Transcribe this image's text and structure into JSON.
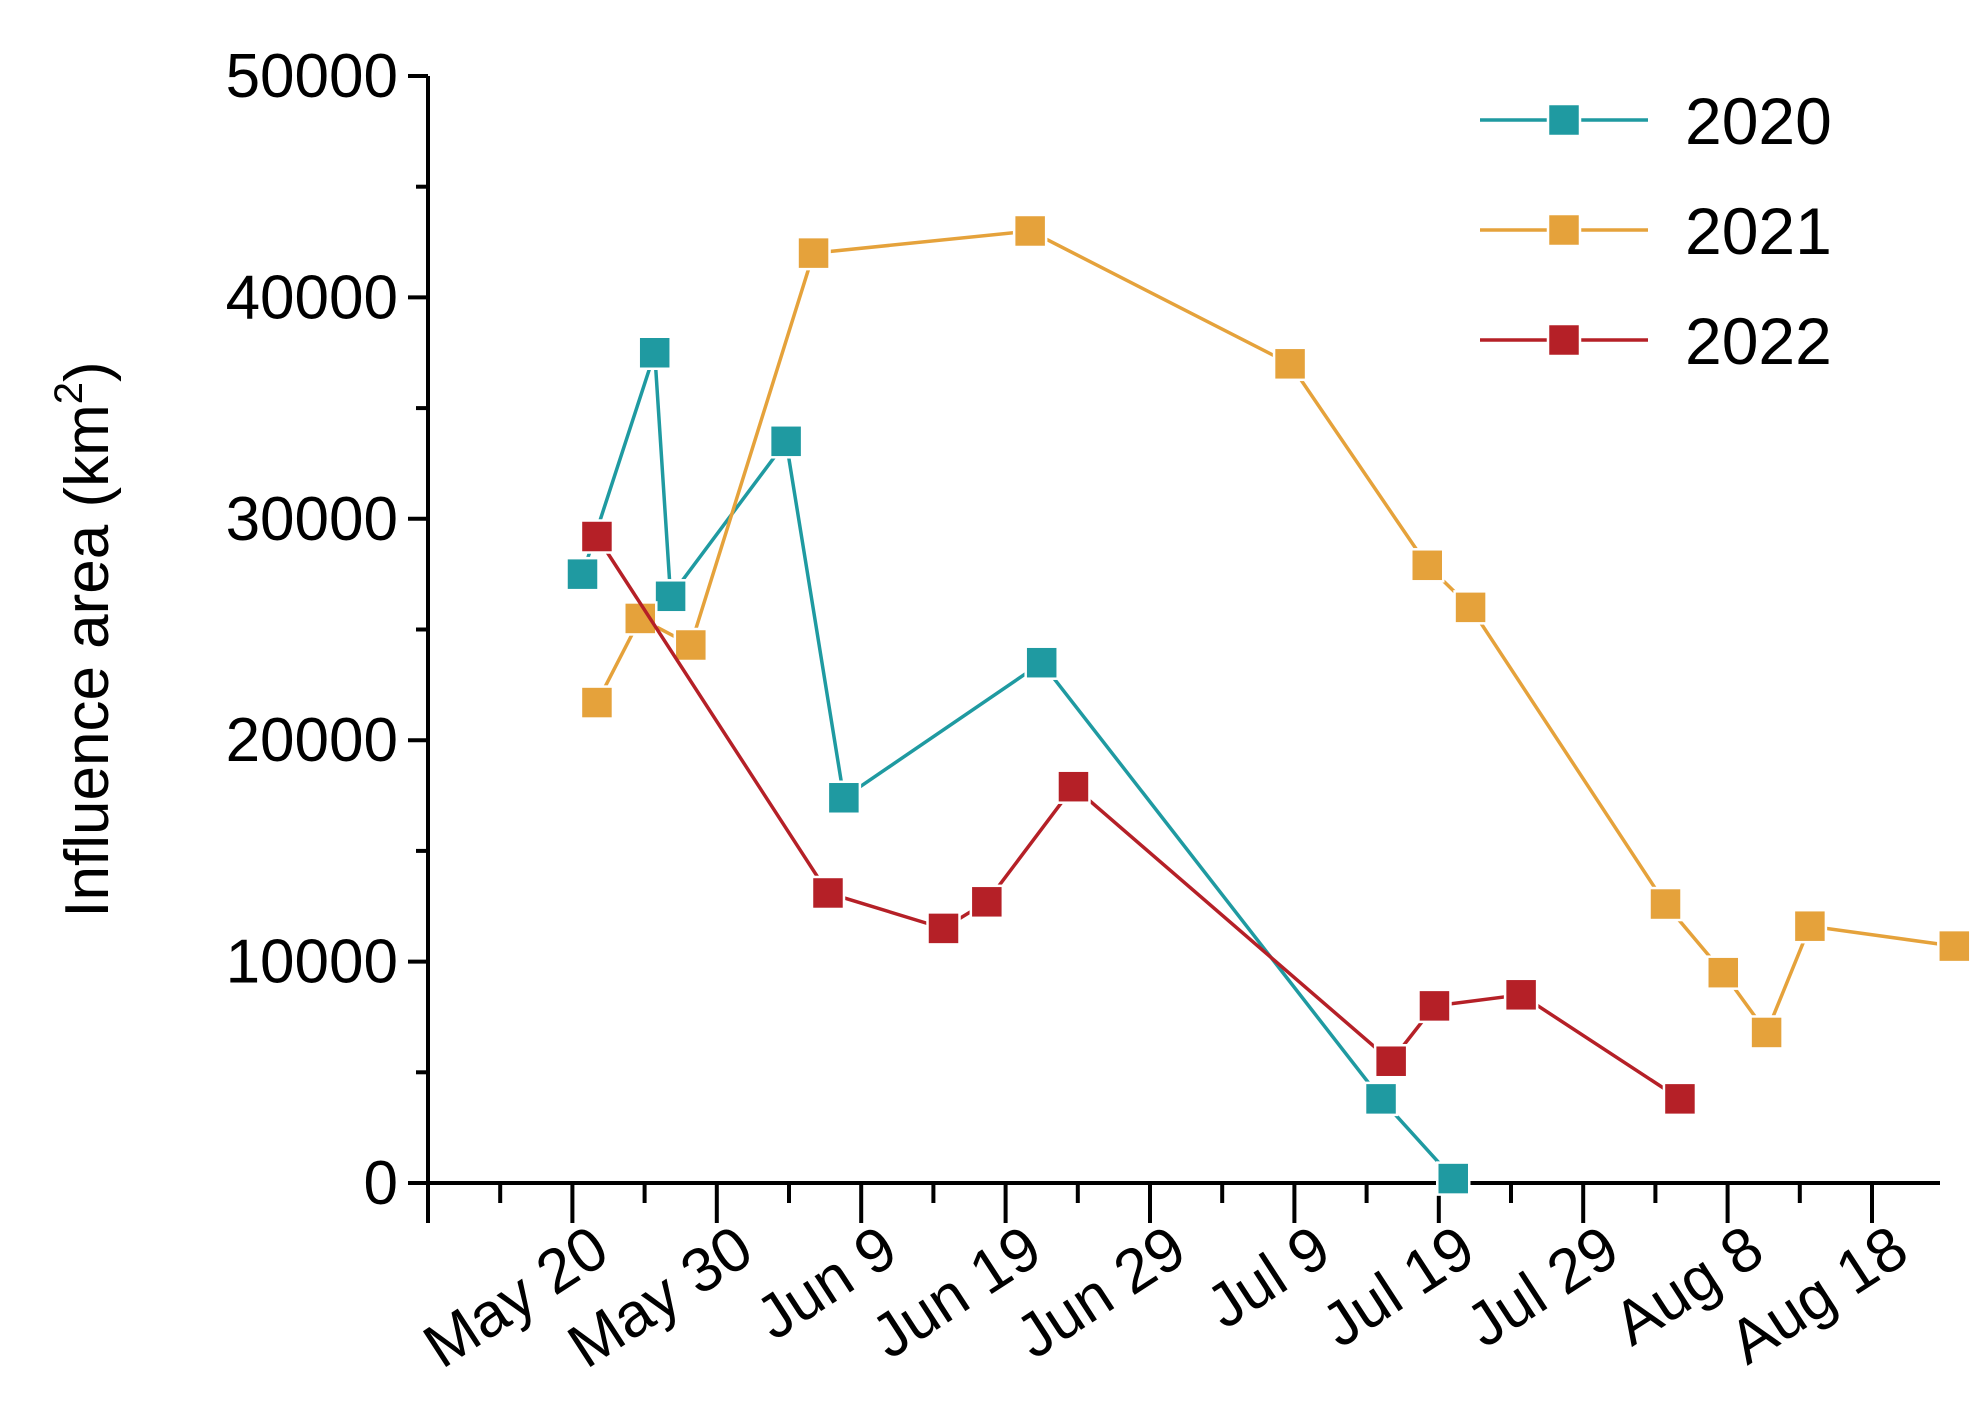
{
  "chart_data": {
    "type": "line",
    "title": "",
    "xlabel": "",
    "ylabel": "Influence area (km",
    "ylabel_superscript": "2",
    "ylabel_close": ")",
    "ylim": [
      0,
      50000
    ],
    "yticks": [
      0,
      10000,
      20000,
      30000,
      40000,
      50000
    ],
    "ytick_labels": [
      "0",
      "10000",
      "20000",
      "30000",
      "40000",
      "50000"
    ],
    "x_unit": "day offset from May 20",
    "xlim": [
      -10,
      90
    ],
    "xticks": [
      0,
      10,
      20,
      30,
      40,
      50,
      60,
      70,
      80,
      90
    ],
    "xtick_labels": [
      "May 20",
      "May 30",
      "Jun 9",
      "Jun 19",
      "Jun 29",
      "Jul 9",
      "Jul 19",
      "Jul 29",
      "Aug 8",
      "Aug 18"
    ],
    "legend_position": "top-right",
    "series": [
      {
        "name": "2020",
        "color": "#1f9aa1",
        "x": [
          0.7,
          5.7,
          6.8,
          14.8,
          18.8,
          32.5,
          56,
          61
        ],
        "y": [
          27500,
          37500,
          26500,
          33500,
          17400,
          23500,
          3800,
          200
        ]
      },
      {
        "name": "2021",
        "color": "#e5a23b",
        "x": [
          1.7,
          4.7,
          8.2,
          16.7,
          31.7,
          49.7,
          59.2,
          62.2,
          75.7,
          79.7,
          82.7,
          85.7,
          95.7
        ],
        "y": [
          21700,
          25500,
          24300,
          42000,
          43000,
          37000,
          27900,
          26000,
          12600,
          9500,
          6800,
          11600,
          10700
        ]
      },
      {
        "name": "2022",
        "color": "#b52027",
        "x": [
          1.7,
          17.7,
          25.7,
          28.7,
          34.7,
          56.7,
          59.7,
          65.7,
          76.7
        ],
        "y": [
          29200,
          13100,
          11500,
          12700,
          17900,
          5500,
          8000,
          8500,
          3800
        ]
      }
    ]
  }
}
